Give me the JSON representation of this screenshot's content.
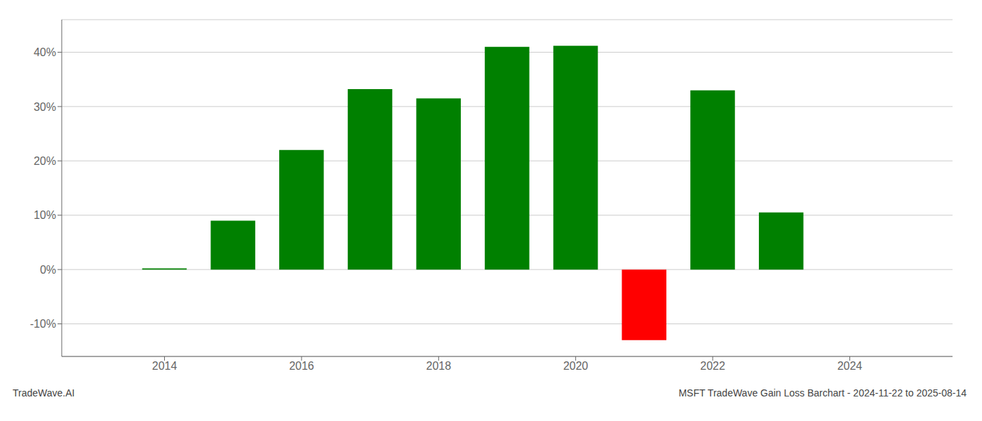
{
  "chart_data": {
    "type": "bar",
    "x": [
      2014,
      2015,
      2016,
      2017,
      2018,
      2019,
      2020,
      2021,
      2022,
      2023
    ],
    "values": [
      0.2,
      9.0,
      22.0,
      33.2,
      31.5,
      41.0,
      41.2,
      -13.0,
      33.0,
      10.5
    ],
    "colors": [
      "#008000",
      "#008000",
      "#008000",
      "#008000",
      "#008000",
      "#008000",
      "#008000",
      "#ff0000",
      "#008000",
      "#008000"
    ],
    "xlim": [
      2012.5,
      2025.5
    ],
    "ylim": [
      -16,
      46
    ],
    "xticks": [
      2014,
      2016,
      2018,
      2020,
      2022,
      2024
    ],
    "yticks": [
      {
        "value": -10,
        "label": "-10%"
      },
      {
        "value": 0,
        "label": "0%"
      },
      {
        "value": 10,
        "label": "10%"
      },
      {
        "value": 20,
        "label": "20%"
      },
      {
        "value": 30,
        "label": "30%"
      },
      {
        "value": 40,
        "label": "40%"
      }
    ],
    "grid": "y",
    "annotations": [
      "TradeWave.AI",
      "MSFT TradeWave Gain Loss Barchart - 2024-11-22 to 2025-08-14"
    ]
  }
}
